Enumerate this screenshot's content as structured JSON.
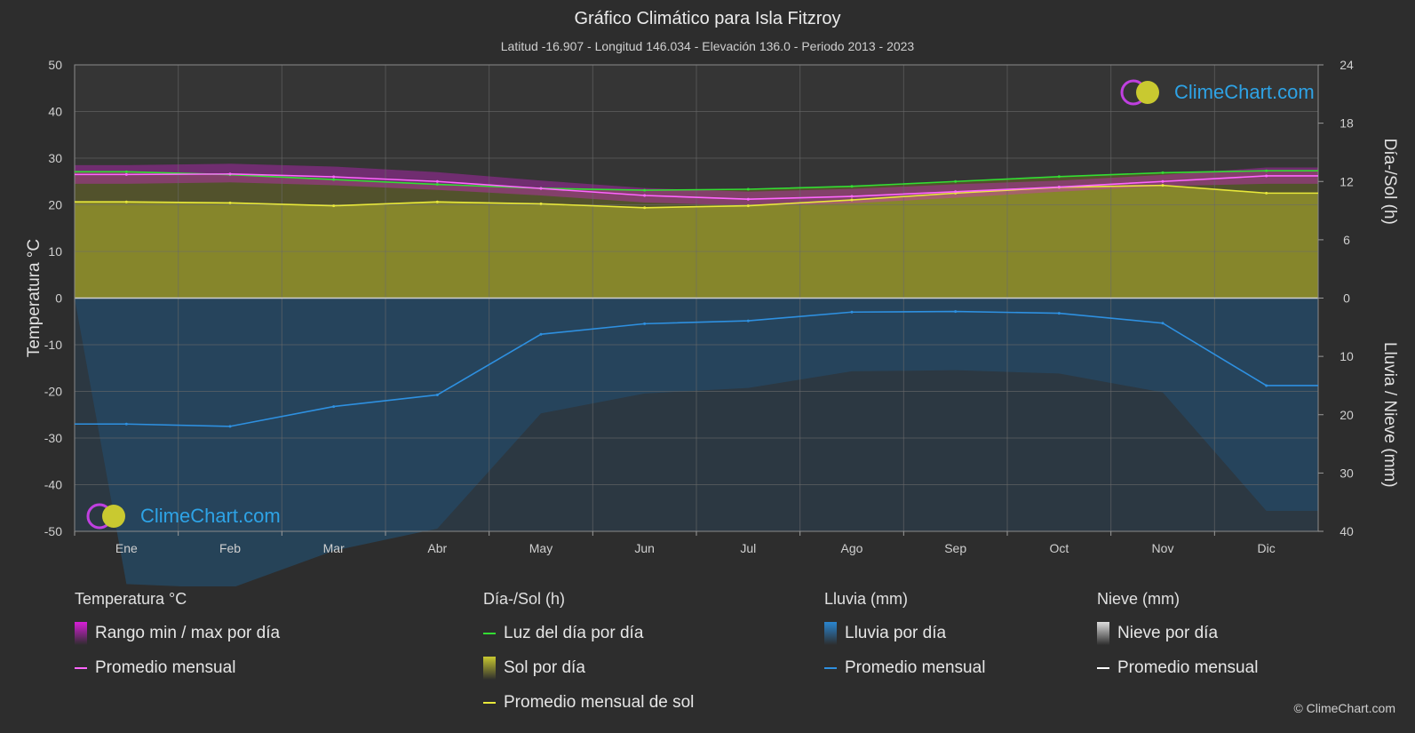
{
  "title": "Gráfico Climático para Isla Fitzroy",
  "subtitle": "Latitud -16.907 - Longitud 146.034 - Elevación 136.0 - Periodo 2013 - 2023",
  "logo_text": "ClimeChart.com",
  "copyright": "© ClimeChart.com",
  "colors": {
    "background": "#2d2d2d",
    "temp_range": "#e020e0",
    "temp_avg": "#ff66ff",
    "daylight": "#33dd33",
    "sunshine_fill": "#8f8f2a",
    "sunshine_avg": "#e8e83a",
    "rain_fill": "#1f5f8f",
    "rain_avg": "#2e90e0",
    "snow_avg": "#ffffff"
  },
  "chart_data": {
    "type": "line",
    "months": [
      "Ene",
      "Feb",
      "Mar",
      "Abr",
      "May",
      "Jun",
      "Jul",
      "Ago",
      "Sep",
      "Oct",
      "Nov",
      "Dic"
    ],
    "y_left": {
      "label": "Temperatura °C",
      "min": -50,
      "max": 50,
      "ticks": [
        50,
        40,
        30,
        20,
        10,
        0,
        -10,
        -20,
        -30,
        -40,
        -50
      ]
    },
    "y_right_top": {
      "label": "Día-/Sol (h)",
      "min": 0,
      "max": 24,
      "ticks": [
        24,
        18,
        12,
        6,
        0
      ]
    },
    "y_right_bottom": {
      "label": "Lluvia / Nieve (mm)",
      "min": 0,
      "max": 40,
      "ticks": [
        0,
        10,
        20,
        30,
        40
      ]
    },
    "series": [
      {
        "name": "Promedio mensual",
        "group": "temperature",
        "unit": "°C",
        "values": [
          26.5,
          26.6,
          26.0,
          25.0,
          23.5,
          22.0,
          21.2,
          21.8,
          22.8,
          23.8,
          25.0,
          26.2
        ]
      },
      {
        "name": "Rango min / max por día",
        "group": "temperature",
        "unit": "°C",
        "min": [
          24.5,
          24.8,
          24.2,
          23.2,
          22.0,
          20.5,
          19.8,
          20.3,
          21.5,
          22.8,
          24.0,
          24.5
        ],
        "max": [
          28.5,
          28.8,
          28.2,
          27.0,
          25.2,
          23.6,
          22.8,
          23.4,
          24.4,
          25.2,
          26.4,
          28.0
        ]
      },
      {
        "name": "Luz del día por día",
        "group": "daylight",
        "unit": "h",
        "values": [
          13.0,
          12.7,
          12.2,
          11.7,
          11.3,
          11.1,
          11.2,
          11.5,
          12.0,
          12.5,
          12.9,
          13.1
        ]
      },
      {
        "name": "Promedio mensual de sol",
        "group": "sunshine",
        "unit": "h",
        "values": [
          9.9,
          9.8,
          9.5,
          9.9,
          9.7,
          9.3,
          9.5,
          10.1,
          10.8,
          11.4,
          11.6,
          10.8
        ]
      },
      {
        "name": "Promedio mensual",
        "group": "rain",
        "unit": "mm",
        "values": [
          21.6,
          22.0,
          18.6,
          16.6,
          6.2,
          4.4,
          3.9,
          2.4,
          2.3,
          2.6,
          4.3,
          15.0
        ]
      },
      {
        "name": "Promedio mensual",
        "group": "snow",
        "unit": "mm",
        "values": [
          0,
          0,
          0,
          0,
          0,
          0,
          0,
          0,
          0,
          0,
          0,
          0
        ]
      }
    ],
    "grid": true
  },
  "legend": [
    {
      "heading": "Temperatura °C",
      "items": [
        {
          "label": "Rango min / max por día",
          "kind": "block",
          "color": "#d81ed8"
        },
        {
          "label": "Promedio mensual",
          "kind": "line",
          "color": "#ff66ff"
        }
      ]
    },
    {
      "heading": "Día-/Sol (h)",
      "items": [
        {
          "label": "Luz del día por día",
          "kind": "line",
          "color": "#33dd33"
        },
        {
          "label": "Sol por día",
          "kind": "block",
          "color": "#c8c830"
        },
        {
          "label": "Promedio mensual de sol",
          "kind": "line",
          "color": "#e8e83a"
        }
      ]
    },
    {
      "heading": "Lluvia (mm)",
      "items": [
        {
          "label": "Lluvia por día",
          "kind": "block",
          "color": "#2a86d0"
        },
        {
          "label": "Promedio mensual",
          "kind": "line",
          "color": "#2e90e0"
        }
      ]
    },
    {
      "heading": "Nieve (mm)",
      "items": [
        {
          "label": "Nieve por día",
          "kind": "block",
          "color": "#dddddd"
        },
        {
          "label": "Promedio mensual",
          "kind": "line",
          "color": "#ffffff"
        }
      ]
    }
  ]
}
